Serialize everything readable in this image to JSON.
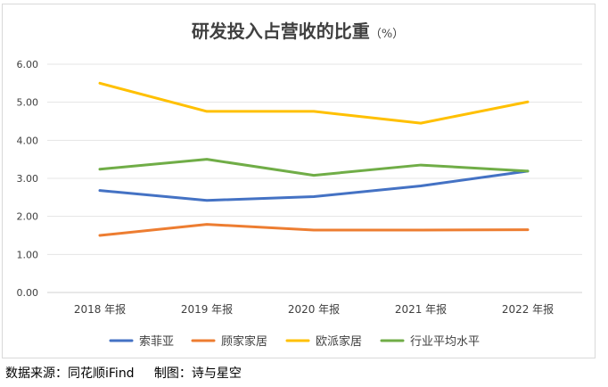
{
  "chart_data": {
    "type": "line",
    "title": "研发投入占营收的比重",
    "title_unit": "（%）",
    "categories": [
      "2018 年报",
      "2019 年报",
      "2020 年报",
      "2021 年报",
      "2022 年报"
    ],
    "ylim": [
      0,
      6
    ],
    "yticks": [
      "0.00",
      "1.00",
      "2.00",
      "3.00",
      "4.00",
      "5.00",
      "6.00"
    ],
    "grid": true,
    "legend_position": "bottom",
    "series": [
      {
        "name": "索菲亚",
        "color": "#4472c4",
        "values": [
          2.68,
          2.42,
          2.52,
          2.8,
          3.19
        ]
      },
      {
        "name": "顾家家居",
        "color": "#ed7d31",
        "values": [
          1.5,
          1.79,
          1.64,
          1.64,
          1.65
        ]
      },
      {
        "name": "欧派家居",
        "color": "#ffc000",
        "values": [
          5.5,
          4.76,
          4.76,
          4.45,
          5.01
        ]
      },
      {
        "name": "行业平均水平",
        "color": "#70ad47",
        "values": [
          3.24,
          3.5,
          3.08,
          3.35,
          3.19
        ]
      }
    ]
  },
  "footer": {
    "source": "数据来源：同花顺iFind     制图：诗与星空"
  }
}
